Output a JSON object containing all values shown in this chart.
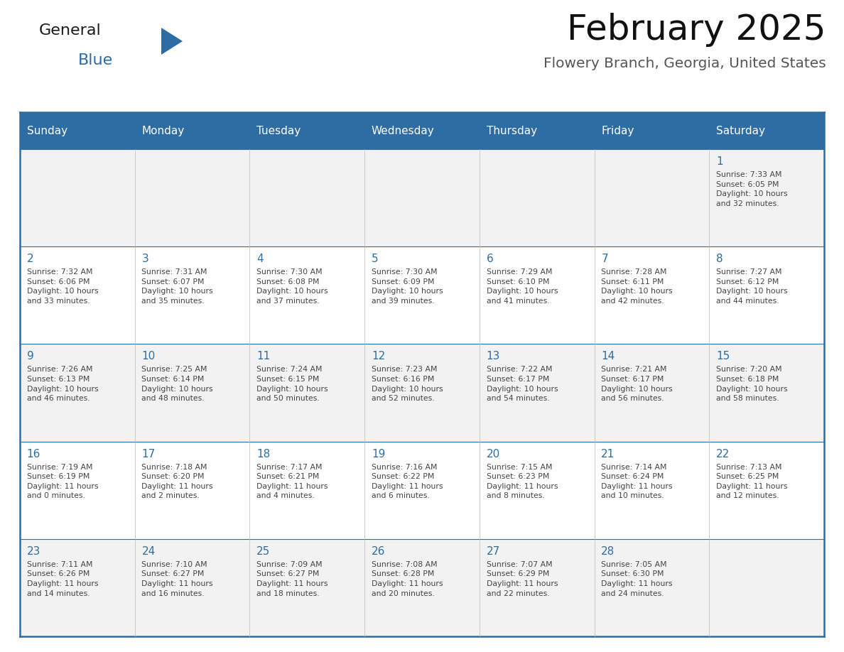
{
  "title": "February 2025",
  "subtitle": "Flowery Branch, Georgia, United States",
  "days_of_week": [
    "Sunday",
    "Monday",
    "Tuesday",
    "Wednesday",
    "Thursday",
    "Friday",
    "Saturday"
  ],
  "header_bg": "#2E6DA4",
  "header_text": "#FFFFFF",
  "row_bg_light": "#F2F2F2",
  "row_bg_white": "#FFFFFF",
  "day_number_color": "#2E6DA4",
  "cell_text_color": "#444444",
  "line_color": "#2E6DA4",
  "border_color": "#2E6DA4",
  "calendar": [
    [
      null,
      null,
      null,
      null,
      null,
      null,
      {
        "day": 1,
        "sunrise": "7:33 AM",
        "sunset": "6:05 PM",
        "daylight": "10 hours\nand 32 minutes."
      }
    ],
    [
      {
        "day": 2,
        "sunrise": "7:32 AM",
        "sunset": "6:06 PM",
        "daylight": "10 hours\nand 33 minutes."
      },
      {
        "day": 3,
        "sunrise": "7:31 AM",
        "sunset": "6:07 PM",
        "daylight": "10 hours\nand 35 minutes."
      },
      {
        "day": 4,
        "sunrise": "7:30 AM",
        "sunset": "6:08 PM",
        "daylight": "10 hours\nand 37 minutes."
      },
      {
        "day": 5,
        "sunrise": "7:30 AM",
        "sunset": "6:09 PM",
        "daylight": "10 hours\nand 39 minutes."
      },
      {
        "day": 6,
        "sunrise": "7:29 AM",
        "sunset": "6:10 PM",
        "daylight": "10 hours\nand 41 minutes."
      },
      {
        "day": 7,
        "sunrise": "7:28 AM",
        "sunset": "6:11 PM",
        "daylight": "10 hours\nand 42 minutes."
      },
      {
        "day": 8,
        "sunrise": "7:27 AM",
        "sunset": "6:12 PM",
        "daylight": "10 hours\nand 44 minutes."
      }
    ],
    [
      {
        "day": 9,
        "sunrise": "7:26 AM",
        "sunset": "6:13 PM",
        "daylight": "10 hours\nand 46 minutes."
      },
      {
        "day": 10,
        "sunrise": "7:25 AM",
        "sunset": "6:14 PM",
        "daylight": "10 hours\nand 48 minutes."
      },
      {
        "day": 11,
        "sunrise": "7:24 AM",
        "sunset": "6:15 PM",
        "daylight": "10 hours\nand 50 minutes."
      },
      {
        "day": 12,
        "sunrise": "7:23 AM",
        "sunset": "6:16 PM",
        "daylight": "10 hours\nand 52 minutes."
      },
      {
        "day": 13,
        "sunrise": "7:22 AM",
        "sunset": "6:17 PM",
        "daylight": "10 hours\nand 54 minutes."
      },
      {
        "day": 14,
        "sunrise": "7:21 AM",
        "sunset": "6:17 PM",
        "daylight": "10 hours\nand 56 minutes."
      },
      {
        "day": 15,
        "sunrise": "7:20 AM",
        "sunset": "6:18 PM",
        "daylight": "10 hours\nand 58 minutes."
      }
    ],
    [
      {
        "day": 16,
        "sunrise": "7:19 AM",
        "sunset": "6:19 PM",
        "daylight": "11 hours\nand 0 minutes."
      },
      {
        "day": 17,
        "sunrise": "7:18 AM",
        "sunset": "6:20 PM",
        "daylight": "11 hours\nand 2 minutes."
      },
      {
        "day": 18,
        "sunrise": "7:17 AM",
        "sunset": "6:21 PM",
        "daylight": "11 hours\nand 4 minutes."
      },
      {
        "day": 19,
        "sunrise": "7:16 AM",
        "sunset": "6:22 PM",
        "daylight": "11 hours\nand 6 minutes."
      },
      {
        "day": 20,
        "sunrise": "7:15 AM",
        "sunset": "6:23 PM",
        "daylight": "11 hours\nand 8 minutes."
      },
      {
        "day": 21,
        "sunrise": "7:14 AM",
        "sunset": "6:24 PM",
        "daylight": "11 hours\nand 10 minutes."
      },
      {
        "day": 22,
        "sunrise": "7:13 AM",
        "sunset": "6:25 PM",
        "daylight": "11 hours\nand 12 minutes."
      }
    ],
    [
      {
        "day": 23,
        "sunrise": "7:11 AM",
        "sunset": "6:26 PM",
        "daylight": "11 hours\nand 14 minutes."
      },
      {
        "day": 24,
        "sunrise": "7:10 AM",
        "sunset": "6:27 PM",
        "daylight": "11 hours\nand 16 minutes."
      },
      {
        "day": 25,
        "sunrise": "7:09 AM",
        "sunset": "6:27 PM",
        "daylight": "11 hours\nand 18 minutes."
      },
      {
        "day": 26,
        "sunrise": "7:08 AM",
        "sunset": "6:28 PM",
        "daylight": "11 hours\nand 20 minutes."
      },
      {
        "day": 27,
        "sunrise": "7:07 AM",
        "sunset": "6:29 PM",
        "daylight": "11 hours\nand 22 minutes."
      },
      {
        "day": 28,
        "sunrise": "7:05 AM",
        "sunset": "6:30 PM",
        "daylight": "11 hours\nand 24 minutes."
      },
      null
    ]
  ]
}
